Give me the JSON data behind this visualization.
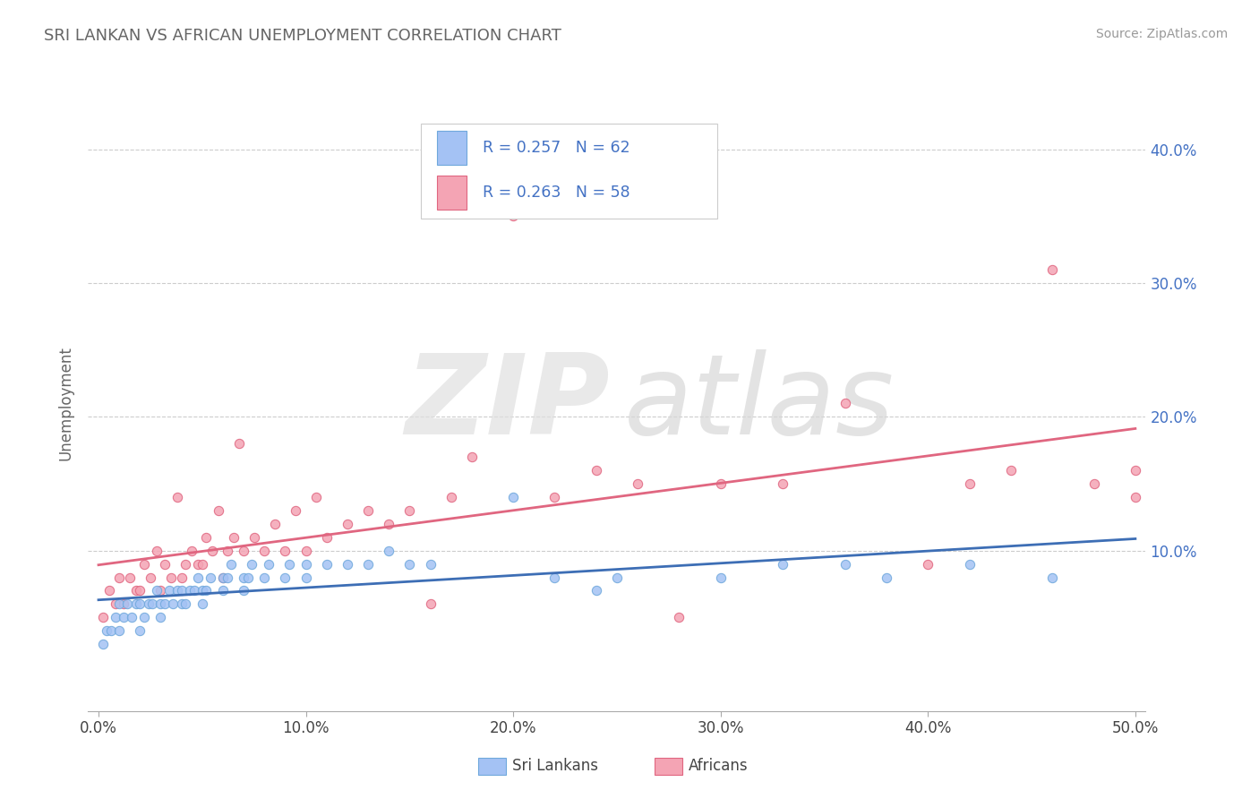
{
  "title": "SRI LANKAN VS AFRICAN UNEMPLOYMENT CORRELATION CHART",
  "source_text": "Source: ZipAtlas.com",
  "ylabel": "Unemployment",
  "xlim": [
    -0.005,
    0.505
  ],
  "ylim": [
    -0.02,
    0.44
  ],
  "xtick_labels": [
    "0.0%",
    "10.0%",
    "20.0%",
    "30.0%",
    "40.0%",
    "50.0%"
  ],
  "xtick_vals": [
    0.0,
    0.1,
    0.2,
    0.3,
    0.4,
    0.5
  ],
  "ytick_labels": [
    "10.0%",
    "20.0%",
    "30.0%",
    "40.0%"
  ],
  "ytick_vals": [
    0.1,
    0.2,
    0.3,
    0.4
  ],
  "blue_color": "#a4c2f4",
  "pink_color": "#f4a4b4",
  "blue_edge_color": "#6fa8dc",
  "pink_edge_color": "#e06680",
  "blue_line_color": "#3d6eb5",
  "pink_line_color": "#e06680",
  "grid_color": "#cccccc",
  "title_color": "#666666",
  "legend_text_color": "#4472c4",
  "legend_N_color": "#222222",
  "R_sri": 0.257,
  "N_sri": 62,
  "R_afr": 0.263,
  "N_afr": 58,
  "sri_x": [
    0.002,
    0.004,
    0.006,
    0.008,
    0.01,
    0.01,
    0.012,
    0.014,
    0.016,
    0.018,
    0.02,
    0.02,
    0.022,
    0.024,
    0.026,
    0.028,
    0.03,
    0.03,
    0.032,
    0.034,
    0.036,
    0.038,
    0.04,
    0.04,
    0.042,
    0.044,
    0.046,
    0.048,
    0.05,
    0.05,
    0.052,
    0.054,
    0.06,
    0.06,
    0.062,
    0.064,
    0.07,
    0.07,
    0.072,
    0.074,
    0.08,
    0.082,
    0.09,
    0.092,
    0.1,
    0.1,
    0.11,
    0.12,
    0.13,
    0.14,
    0.15,
    0.16,
    0.2,
    0.22,
    0.24,
    0.25,
    0.3,
    0.33,
    0.36,
    0.38,
    0.42,
    0.46
  ],
  "sri_y": [
    0.03,
    0.04,
    0.04,
    0.05,
    0.04,
    0.06,
    0.05,
    0.06,
    0.05,
    0.06,
    0.04,
    0.06,
    0.05,
    0.06,
    0.06,
    0.07,
    0.05,
    0.06,
    0.06,
    0.07,
    0.06,
    0.07,
    0.06,
    0.07,
    0.06,
    0.07,
    0.07,
    0.08,
    0.06,
    0.07,
    0.07,
    0.08,
    0.07,
    0.08,
    0.08,
    0.09,
    0.07,
    0.08,
    0.08,
    0.09,
    0.08,
    0.09,
    0.08,
    0.09,
    0.08,
    0.09,
    0.09,
    0.09,
    0.09,
    0.1,
    0.09,
    0.09,
    0.14,
    0.08,
    0.07,
    0.08,
    0.08,
    0.09,
    0.09,
    0.08,
    0.09,
    0.08
  ],
  "afr_x": [
    0.002,
    0.005,
    0.008,
    0.01,
    0.012,
    0.015,
    0.018,
    0.02,
    0.022,
    0.025,
    0.028,
    0.03,
    0.032,
    0.035,
    0.038,
    0.04,
    0.042,
    0.045,
    0.048,
    0.05,
    0.052,
    0.055,
    0.058,
    0.06,
    0.062,
    0.065,
    0.068,
    0.07,
    0.075,
    0.08,
    0.085,
    0.09,
    0.095,
    0.1,
    0.105,
    0.11,
    0.12,
    0.13,
    0.14,
    0.15,
    0.16,
    0.17,
    0.18,
    0.2,
    0.22,
    0.24,
    0.26,
    0.28,
    0.3,
    0.33,
    0.36,
    0.4,
    0.42,
    0.44,
    0.46,
    0.48,
    0.5,
    0.5
  ],
  "afr_y": [
    0.05,
    0.07,
    0.06,
    0.08,
    0.06,
    0.08,
    0.07,
    0.07,
    0.09,
    0.08,
    0.1,
    0.07,
    0.09,
    0.08,
    0.14,
    0.08,
    0.09,
    0.1,
    0.09,
    0.09,
    0.11,
    0.1,
    0.13,
    0.08,
    0.1,
    0.11,
    0.18,
    0.1,
    0.11,
    0.1,
    0.12,
    0.1,
    0.13,
    0.1,
    0.14,
    0.11,
    0.12,
    0.13,
    0.12,
    0.13,
    0.06,
    0.14,
    0.17,
    0.35,
    0.14,
    0.16,
    0.15,
    0.05,
    0.15,
    0.15,
    0.21,
    0.09,
    0.15,
    0.16,
    0.31,
    0.15,
    0.14,
    0.16
  ]
}
